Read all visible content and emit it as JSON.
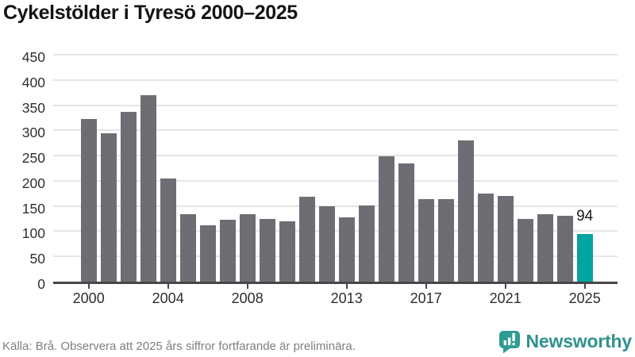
{
  "title": "Cykelstölder i Tyresö 2000–2025",
  "footer": {
    "source": "Källa: Brå. Observera att 2025 års siffror fortfarande är preliminära.",
    "brand": "Newsworthy"
  },
  "chart_data": {
    "type": "bar",
    "title": "Cykelstölder i Tyresö 2000–2025",
    "categories": [
      2000,
      2001,
      2002,
      2003,
      2004,
      2005,
      2006,
      2007,
      2008,
      2009,
      2010,
      2011,
      2012,
      2013,
      2014,
      2015,
      2016,
      2017,
      2018,
      2019,
      2020,
      2021,
      2022,
      2023,
      2024,
      2025
    ],
    "values": [
      322,
      294,
      336,
      370,
      205,
      134,
      112,
      123,
      134,
      124,
      119,
      169,
      149,
      127,
      151,
      249,
      235,
      164,
      164,
      280,
      175,
      170,
      124,
      133,
      131,
      94
    ],
    "xlabel": "",
    "ylabel": "",
    "ylim": [
      0,
      450
    ],
    "yticks": [
      0,
      50,
      100,
      150,
      200,
      250,
      300,
      350,
      400,
      450
    ],
    "xticks": [
      2000,
      2004,
      2008,
      2013,
      2017,
      2021,
      2025
    ],
    "grid": "horizontal",
    "legend": "none",
    "highlight_category": 2025,
    "highlight_value_label": "94",
    "colors": {
      "bar": "#6e6d73",
      "highlight": "#00a49e",
      "grid": "#e5e5e5",
      "axis": "#47474b"
    }
  }
}
